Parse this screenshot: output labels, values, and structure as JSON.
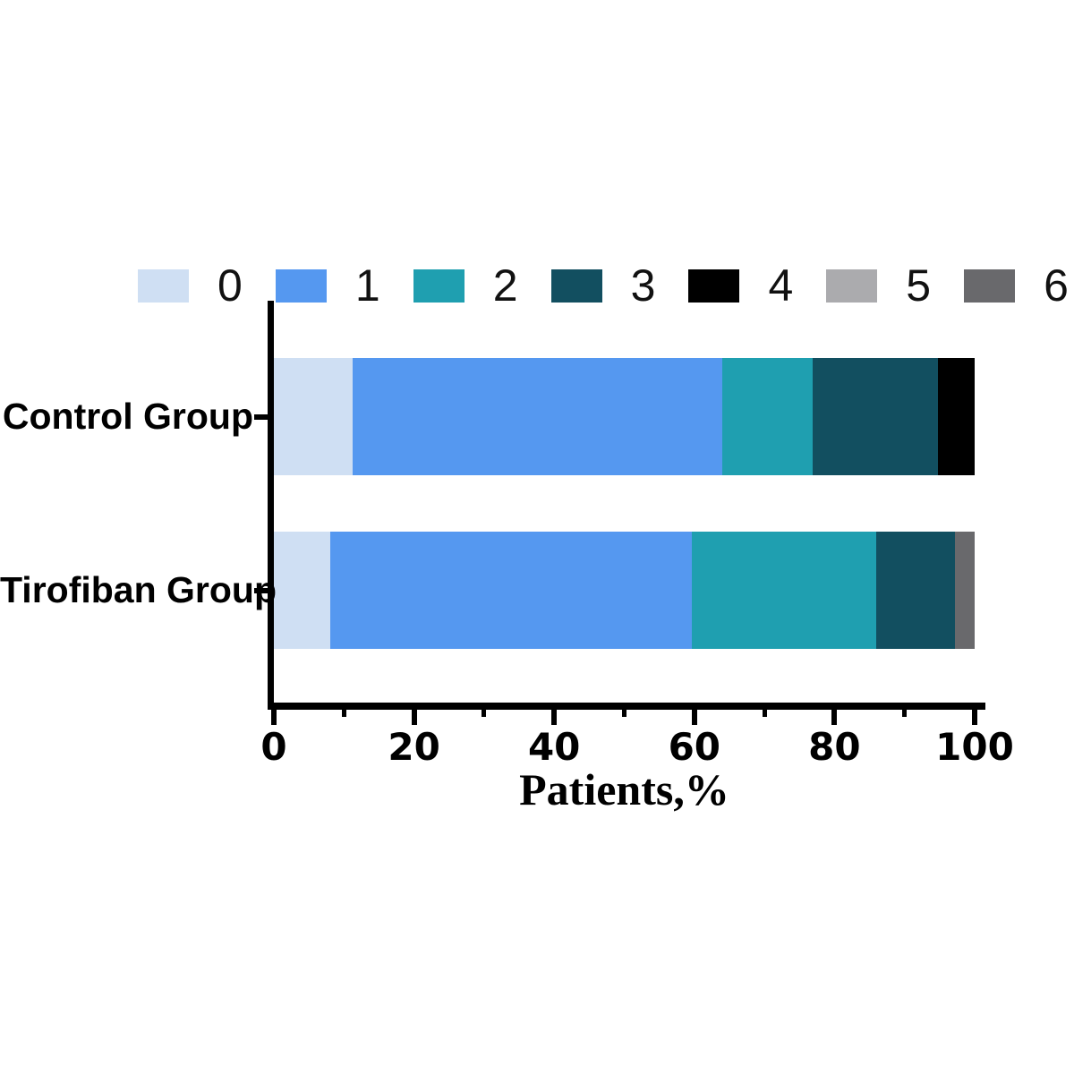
{
  "chart_data": {
    "type": "bar",
    "orientation": "horizontal",
    "stacked": true,
    "title": "",
    "xlabel": "Patients,%",
    "ylabel": "",
    "xlim": [
      0,
      100
    ],
    "x_major_ticks": [
      "0",
      "20",
      "40",
      "60",
      "80",
      "100"
    ],
    "x_minor_ticks": [
      10,
      30,
      50,
      70,
      90
    ],
    "grid": false,
    "legend_position": "top",
    "axis_color": "#000000",
    "categories": [
      "Control Group",
      "Tirofiban Group"
    ],
    "series": [
      {
        "name": "0",
        "color": "#cfdff3",
        "values": [
          11.2,
          8.1
        ]
      },
      {
        "name": "1",
        "color": "#5598f0",
        "values": [
          52.8,
          51.6
        ]
      },
      {
        "name": "2",
        "color": "#1f9fb0",
        "values": [
          12.9,
          26.3
        ]
      },
      {
        "name": "3",
        "color": "#124f60",
        "values": [
          17.9,
          11.2
        ]
      },
      {
        "name": "4",
        "color": "#000000",
        "values": [
          5.2,
          0
        ]
      },
      {
        "name": "5",
        "color": "#ababae",
        "values": [
          0,
          0
        ]
      },
      {
        "name": "6",
        "color": "#69696c",
        "values": [
          0,
          2.8
        ]
      }
    ]
  }
}
